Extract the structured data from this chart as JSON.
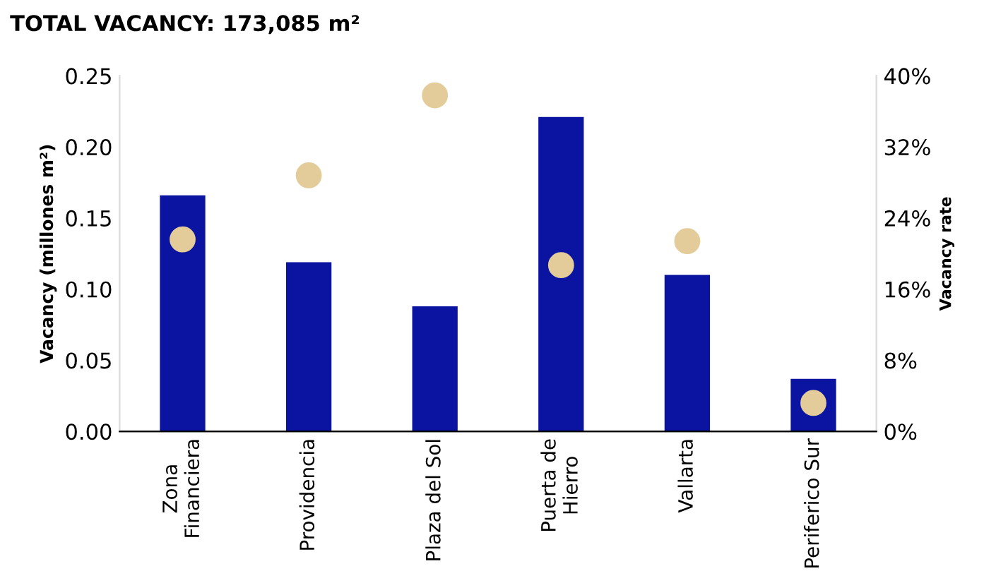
{
  "chart_data": {
    "type": "bar",
    "title": "TOTAL VACANCY: 173,085 m²",
    "categories": [
      "Zona\nFinanciera",
      "Providencia",
      "Plaza del Sol",
      "Puerta de\nHierro",
      "Vallarta",
      "Periferico Sur"
    ],
    "series": [
      {
        "color": "#0a14a0",
        "values": [
          0.166,
          0.119,
          0.088,
          0.221,
          0.11,
          0.037
        ]
      },
      {
        "type": "scatter",
        "axis": "y2",
        "color": "#e3cc9a",
        "values": [
          21.6,
          28.8,
          37.8,
          18.7,
          21.4,
          3.2
        ]
      }
    ],
    "ylabel": "Vacancy (millones m²)",
    "y2label": "Vacancy rate",
    "ylim": [
      0,
      0.25
    ],
    "yticks": [
      {
        "value": 0,
        "label": "0.00"
      },
      {
        "value": 0.05,
        "label": "0.05"
      },
      {
        "value": 0.1,
        "label": "0.10"
      },
      {
        "value": 0.15,
        "label": "0.15"
      },
      {
        "value": 0.2,
        "label": "0.20"
      },
      {
        "value": 0.25,
        "label": "0.25"
      }
    ],
    "y2lim": [
      0,
      40
    ],
    "y2ticks": [
      {
        "value": 0,
        "label": "0%"
      },
      {
        "value": 8,
        "label": "8%"
      },
      {
        "value": 16,
        "label": "16%"
      },
      {
        "value": 24,
        "label": "24%"
      },
      {
        "value": 32,
        "label": "32%"
      },
      {
        "value": 40,
        "label": "40%"
      }
    ],
    "grid": false,
    "legend": false
  }
}
